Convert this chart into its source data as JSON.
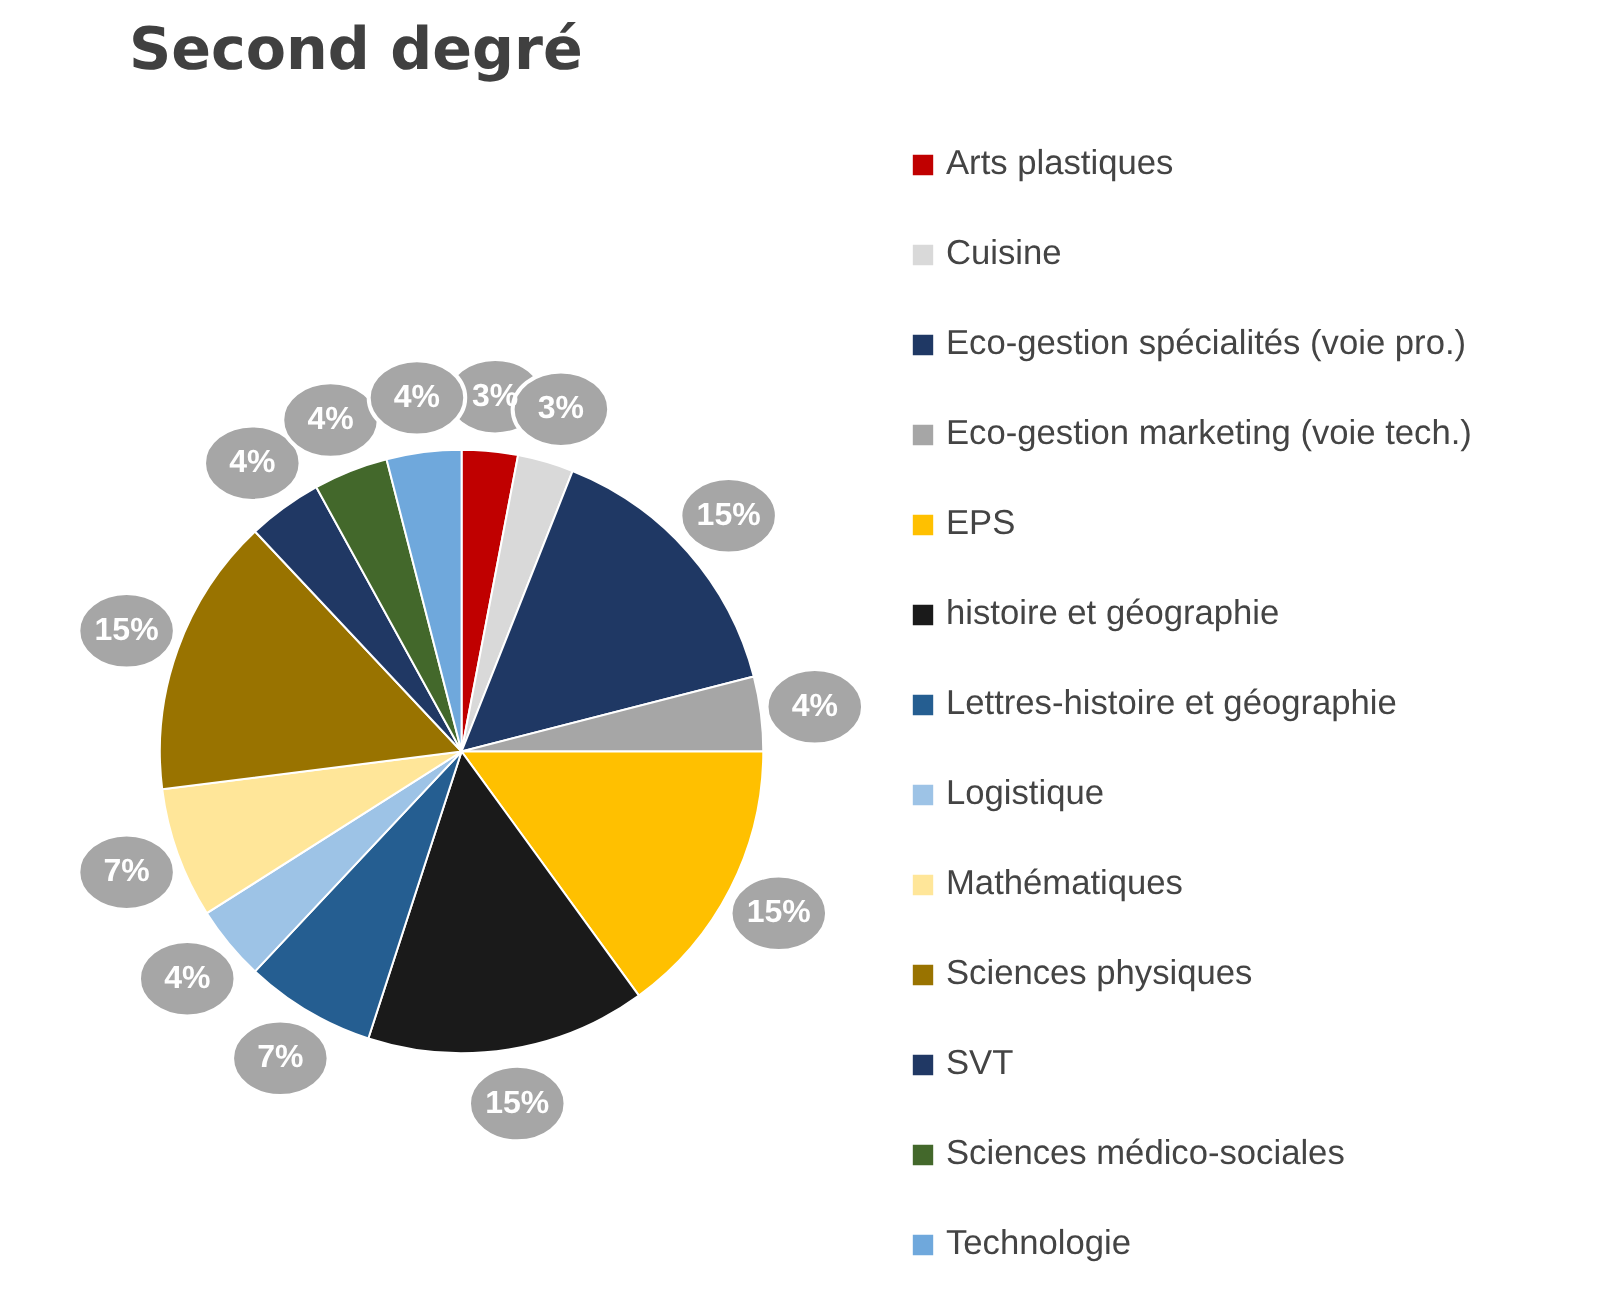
{
  "chart_data": {
    "type": "pie",
    "title": "Second degré",
    "categories": [
      "Arts plastiques",
      "Cuisine",
      "Eco-gestion spécialités (voie pro.)",
      "Eco-gestion marketing (voie tech.)",
      "EPS",
      "histoire et géographie",
      "Lettres-histoire et géographie",
      "Logistique",
      "Mathématiques",
      "Sciences physiques",
      "SVT",
      "Sciences médico-sociales",
      "Technologie"
    ],
    "values": [
      3,
      3,
      15,
      4,
      15,
      15,
      7,
      4,
      7,
      15,
      4,
      4,
      4
    ],
    "value_labels": [
      "3%",
      "3%",
      "15%",
      "4%",
      "15%",
      "15%",
      "7%",
      "4%",
      "7%",
      "15%",
      "4%",
      "4%",
      "4%"
    ],
    "colors": [
      "#c00000",
      "#d9d9d9",
      "#1f3864",
      "#a6a6a6",
      "#ffc000",
      "#1a1a1a",
      "#255e91",
      "#9dc3e6",
      "#ffe699",
      "#997300",
      "#203864",
      "#43682b",
      "#6fa8dc"
    ],
    "legend": "right"
  }
}
